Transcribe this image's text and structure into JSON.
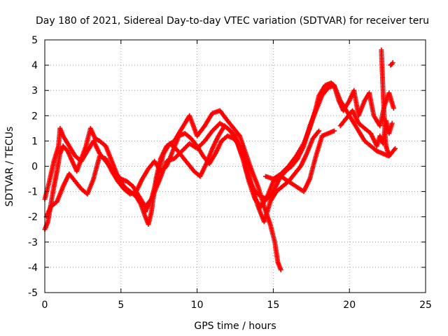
{
  "chart_data": {
    "type": "scatter",
    "title": "Day 180 of 2021, Sidereal Day-to-day VTEC variation (SDTVAR) for receiver teru",
    "xlabel": "GPS time / hours",
    "ylabel": "SDTVAR / TECUs",
    "xlim": [
      0,
      25
    ],
    "ylim": [
      -5,
      5
    ],
    "xticks": [
      "0",
      "5",
      "10",
      "15",
      "20",
      "25"
    ],
    "yticks": [
      "5",
      "4",
      "3",
      "2",
      "1",
      "0",
      "-1",
      "-2",
      "-3",
      "-4",
      "-5"
    ],
    "grid": true,
    "marker": "+",
    "color": "#ff0000",
    "series": [
      {
        "name": "track-1",
        "x": [
          0.0,
          0.2,
          0.4,
          0.6,
          0.8,
          1.0,
          1.2,
          1.5,
          1.8,
          2.1,
          2.4,
          2.7,
          3.0,
          3.3,
          3.6,
          4.0,
          4.4,
          4.8,
          5.2,
          5.6,
          6.0,
          6.3,
          6.6,
          6.8,
          7.0,
          7.3,
          7.6,
          8.0,
          8.5,
          9.0,
          9.5,
          10.0,
          10.5,
          11.0,
          11.5,
          12.0,
          12.4,
          12.8,
          13.2,
          13.6,
          14.0,
          14.4,
          14.8,
          15.1,
          15.3,
          15.5
        ],
        "y": [
          -2.5,
          -2.2,
          -1.5,
          -0.8,
          -0.2,
          0.5,
          0.8,
          0.6,
          0.2,
          -0.2,
          0.3,
          0.8,
          1.5,
          1.1,
          1.0,
          0.8,
          0.2,
          -0.4,
          -0.8,
          -1.0,
          -1.2,
          -1.5,
          -2.0,
          -2.3,
          -1.8,
          -0.5,
          0.3,
          0.8,
          1.0,
          1.5,
          2.0,
          1.2,
          1.6,
          2.1,
          2.2,
          1.8,
          1.5,
          1.2,
          0.5,
          -0.2,
          -0.8,
          -1.6,
          -2.3,
          -3.0,
          -3.8,
          -4.1
        ]
      },
      {
        "name": "track-2",
        "x": [
          0.0,
          0.3,
          0.6,
          0.9,
          1.0,
          1.2,
          1.6,
          2.0,
          2.4,
          2.8,
          3.2,
          3.6,
          4.0,
          4.5,
          5.0,
          5.4,
          5.8,
          6.2,
          6.6,
          7.0,
          7.5,
          8.0,
          8.5,
          9.0,
          9.5,
          10.0,
          10.5,
          11.0,
          11.5,
          12.0,
          12.5,
          13.0,
          13.4,
          13.8,
          14.2,
          14.6,
          15.0,
          15.5,
          16.0,
          16.5,
          17.0,
          17.4,
          17.8,
          18.2,
          18.6,
          19.0
        ],
        "y": [
          -1.3,
          -0.6,
          0.2,
          0.8,
          1.5,
          1.2,
          0.8,
          0.4,
          0.2,
          0.6,
          1.0,
          0.5,
          0.2,
          -0.2,
          -0.5,
          -0.6,
          -0.8,
          -1.2,
          -1.6,
          -1.3,
          -0.6,
          0.2,
          0.3,
          0.6,
          0.9,
          0.7,
          1.0,
          1.4,
          1.7,
          1.5,
          1.2,
          0.3,
          -0.6,
          -1.3,
          -1.6,
          -1.2,
          -0.6,
          -0.4,
          -0.6,
          -0.8,
          -1.0,
          -0.5,
          0.4,
          1.2,
          1.3,
          1.4
        ]
      },
      {
        "name": "track-3",
        "x": [
          0.1,
          0.4,
          0.8,
          1.2,
          1.6,
          2.0,
          2.4,
          2.8,
          3.2,
          3.6,
          4.0,
          4.4,
          4.8,
          5.2,
          5.6,
          6.0,
          6.4,
          6.8,
          7.2,
          7.6,
          8.0,
          8.4,
          8.8,
          9.2,
          9.6,
          10.0,
          10.4,
          10.8,
          11.2,
          11.6,
          12.0,
          12.4,
          12.8,
          13.2,
          13.6,
          14.0,
          14.4,
          14.8,
          15.2,
          15.6,
          16.0,
          16.4,
          16.8,
          17.2,
          17.6,
          18.0
        ],
        "y": [
          -2.0,
          -1.6,
          -1.4,
          -0.8,
          -0.3,
          -0.6,
          -0.9,
          -1.1,
          -0.5,
          0.4,
          0.3,
          -0.2,
          -0.6,
          -0.9,
          -1.1,
          -1.0,
          -0.5,
          -0.1,
          0.2,
          -0.2,
          0.0,
          0.6,
          1.2,
          1.3,
          1.1,
          0.8,
          0.4,
          0.1,
          0.5,
          1.0,
          1.2,
          1.1,
          0.8,
          0.1,
          -0.8,
          -1.6,
          -2.2,
          -1.4,
          -1.0,
          -0.8,
          -0.6,
          -0.3,
          0.0,
          0.5,
          1.1,
          1.4
        ]
      },
      {
        "name": "track-4",
        "x": [
          6.6,
          7.0,
          7.4,
          7.8,
          8.2,
          8.6,
          9.0,
          9.4,
          9.8,
          10.2,
          10.6,
          11.0,
          11.4,
          11.8,
          12.2,
          12.6,
          13.0,
          13.4,
          13.8,
          14.2,
          14.6,
          15.0,
          15.4,
          15.8,
          16.2,
          16.6,
          17.0,
          17.4,
          17.8,
          18.2,
          18.6,
          19.0,
          19.4,
          19.8,
          20.2,
          20.6,
          21.0,
          21.4,
          21.8,
          22.2,
          22.6,
          23.0
        ],
        "y": [
          -1.8,
          -1.3,
          -0.4,
          0.5,
          0.9,
          0.7,
          0.4,
          0.1,
          -0.2,
          -0.4,
          0.1,
          0.7,
          1.2,
          1.6,
          1.4,
          1.0,
          0.3,
          -0.5,
          -1.0,
          -1.2,
          -1.3,
          -1.0,
          -0.5,
          -0.2,
          0.0,
          0.3,
          0.8,
          1.6,
          2.2,
          2.8,
          3.1,
          3.2,
          2.6,
          2.2,
          1.8,
          1.4,
          1.0,
          0.8,
          0.6,
          0.5,
          0.4,
          0.7
        ]
      },
      {
        "name": "track-5",
        "x": [
          14.5,
          15.0,
          15.5,
          16.0,
          16.5,
          17.0,
          17.4,
          17.8,
          18.0,
          18.4,
          18.8,
          19.0,
          19.3,
          19.6,
          20.0,
          20.3,
          20.6,
          21.0,
          21.3,
          21.6,
          22.0,
          22.3,
          22.6,
          22.9
        ],
        "y": [
          -0.4,
          -0.5,
          -0.3,
          0.0,
          0.4,
          0.9,
          1.5,
          2.3,
          2.8,
          3.2,
          3.3,
          3.2,
          2.6,
          2.2,
          2.6,
          3.0,
          2.0,
          2.6,
          2.9,
          2.0,
          1.6,
          2.4,
          2.9,
          2.3
        ]
      },
      {
        "name": "track-6",
        "x": [
          19.4,
          19.8,
          20.2,
          20.6,
          21.0,
          21.4,
          21.8,
          22.0,
          22.2,
          22.4,
          22.6,
          22.8
        ],
        "y": [
          1.6,
          1.9,
          2.2,
          1.7,
          1.5,
          1.3,
          0.8,
          1.2,
          0.9,
          1.8,
          1.3,
          1.7
        ]
      },
      {
        "name": "track-7",
        "x": [
          22.1,
          22.15,
          22.2,
          22.25,
          22.3,
          22.35,
          22.4,
          22.5,
          22.6
        ],
        "y": [
          4.6,
          3.8,
          3.1,
          2.4,
          1.8,
          1.2,
          0.8,
          0.6,
          0.5
        ]
      },
      {
        "name": "track-8",
        "x": [
          22.7,
          22.8,
          22.85
        ],
        "y": [
          4.0,
          4.05,
          4.1
        ]
      }
    ]
  }
}
